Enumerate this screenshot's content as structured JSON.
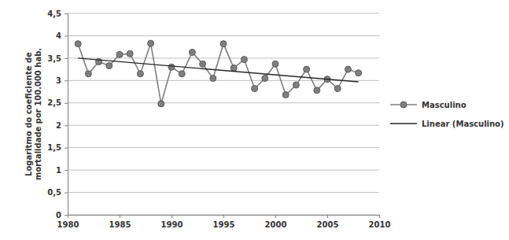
{
  "chart_data": {
    "type": "line",
    "y_label": [
      "Logaritmo do coeficiente de",
      "mortalidade por 100.000 hab."
    ],
    "x": [
      1981,
      1982,
      1983,
      1984,
      1985,
      1986,
      1987,
      1988,
      1989,
      1990,
      1991,
      1992,
      1993,
      1994,
      1995,
      1996,
      1997,
      1998,
      1999,
      2000,
      2001,
      2002,
      2003,
      2004,
      2005,
      2006,
      2007,
      2008
    ],
    "series": [
      {
        "name": "Masculino",
        "color": "#7f7f7f",
        "marker": "circle",
        "line_style": "solid",
        "values": [
          3.82,
          3.15,
          3.42,
          3.33,
          3.58,
          3.6,
          3.15,
          3.83,
          2.48,
          3.3,
          3.15,
          3.63,
          3.37,
          3.05,
          3.82,
          3.28,
          3.47,
          2.82,
          3.05,
          3.37,
          2.68,
          2.9,
          3.25,
          2.78,
          3.03,
          2.82,
          3.25,
          3.17
        ]
      },
      {
        "name": "Linear (Masculino)",
        "color": "#262626",
        "marker": "none",
        "line_style": "solid",
        "x": [
          1981,
          2008
        ],
        "values": [
          3.5,
          2.97
        ]
      }
    ],
    "xlim": [
      1980,
      2010
    ],
    "xticks": [
      1980,
      1985,
      1990,
      1995,
      2000,
      2005,
      2010
    ],
    "ylim": [
      0,
      4.5
    ],
    "yticks": [
      0,
      {
        "value": 0.5,
        "label": "0,5"
      },
      1,
      {
        "value": 1.5,
        "label": "1,5"
      },
      2,
      {
        "value": 2.5,
        "label": "2,5"
      },
      3,
      {
        "value": 3.5,
        "label": "3,5"
      },
      4,
      {
        "value": 4.5,
        "label": "4,5"
      }
    ],
    "grid": true,
    "legend": "right"
  }
}
